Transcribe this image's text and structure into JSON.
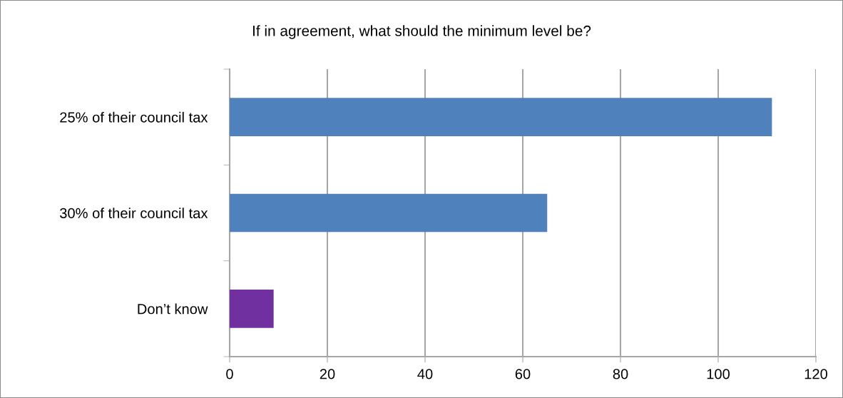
{
  "chart_data": {
    "type": "bar",
    "orientation": "horizontal",
    "title": "If in agreement, what should the minimum level be?",
    "categories": [
      "25% of their council tax",
      "30% of their council tax",
      "Don’t know"
    ],
    "values": [
      111,
      65,
      9
    ],
    "colors": [
      "#4f81bd",
      "#4f81bd",
      "#7030a0"
    ],
    "xlim": [
      0,
      120
    ],
    "xticks": [
      0,
      20,
      40,
      60,
      80,
      100,
      120
    ],
    "grid": "x"
  }
}
